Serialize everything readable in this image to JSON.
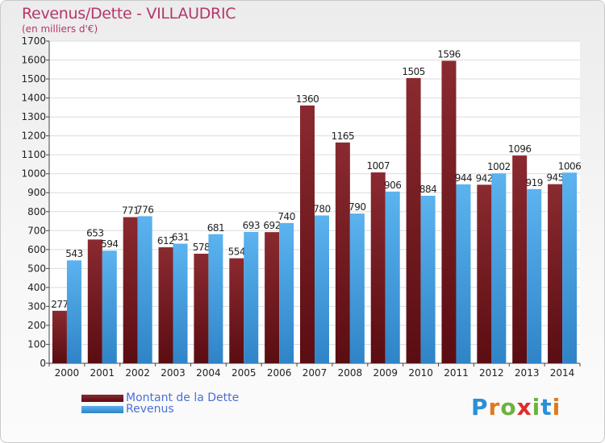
{
  "chart_data": {
    "type": "bar",
    "title": "Revenus/Dette - VILLAUDRIC",
    "subtitle": "(en milliers d'€)",
    "categories": [
      "2000",
      "2001",
      "2002",
      "2003",
      "2004",
      "2005",
      "2006",
      "2007",
      "2008",
      "2009",
      "2010",
      "2011",
      "2012",
      "2013",
      "2014"
    ],
    "series": [
      {
        "name": "Montant de la Dette",
        "values": [
          277,
          653,
          771,
          612,
          578,
          554,
          692,
          1360,
          1165,
          1007,
          1505,
          1596,
          942,
          1096,
          945
        ],
        "color": "#7b1c22"
      },
      {
        "name": "Revenus",
        "values": [
          543,
          594,
          776,
          631,
          681,
          693,
          740,
          780,
          790,
          906,
          884,
          944,
          1002,
          919,
          1006
        ],
        "color": "#3d9be0"
      }
    ],
    "ylim": [
      0,
      1700
    ],
    "yticks": [
      0,
      100,
      200,
      300,
      400,
      500,
      600,
      700,
      800,
      900,
      1000,
      1100,
      1200,
      1300,
      1400,
      1500,
      1600,
      1700
    ],
    "grid": true,
    "legend_position": "bottom-left"
  },
  "logo": {
    "letters": [
      "P",
      "r",
      "o",
      "x",
      "i",
      "t",
      "i"
    ],
    "colors": [
      "#2a8fd6",
      "#e07a1f",
      "#6cb33e",
      "#e02d2d",
      "#6cb33e",
      "#2a8fd6",
      "#e07a1f"
    ]
  }
}
